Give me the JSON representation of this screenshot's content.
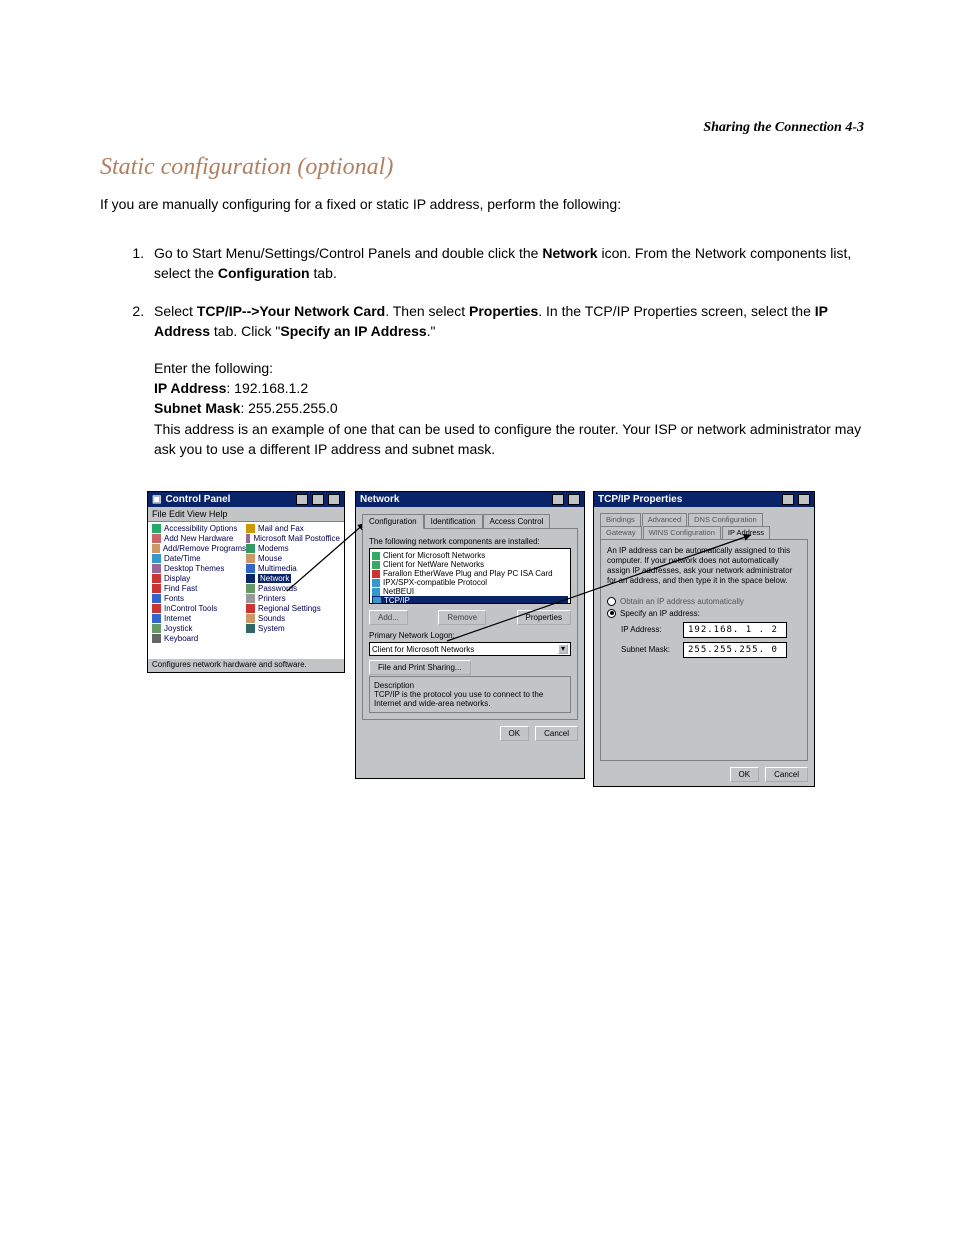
{
  "page_header": "Sharing the Connection   4-3",
  "heading": "Static configuration (optional)",
  "intro": "If you are manually configuring for a fixed or static IP address, perform the following:",
  "steps": {
    "s1_pre": "Go to Start Menu/Settings/Control Panels and double click the ",
    "s1_b1": "Network",
    "s1_mid": " icon. From the Network components list, select the ",
    "s1_b2": "Configuration",
    "s1_post": " tab.",
    "s2_pre": "Select ",
    "s2_b1": "TCP/IP-->Your Network Card",
    "s2_mid1": ". Then select ",
    "s2_b2": "Properties",
    "s2_mid2": ". In the TCP/IP Properties screen, select the ",
    "s2_b3": "IP Address",
    "s2_mid3": " tab. Click \"",
    "s2_b4": "Specify an IP Address",
    "s2_post": ".\"",
    "enter_label": "Enter the following:",
    "ip_label": "IP Address",
    "ip_value": ": 192.168.1.2",
    "mask_label": "Subnet Mask",
    "mask_value": ": 255.255.255.0",
    "note": "This address is an example of one that can be used to configure the router. Your ISP or network administrator may ask you to use a different IP address and subnet mask."
  },
  "colors": {
    "heading_color": "#b08060",
    "titlebar_bg": "#0a246a",
    "win_bg": "#c2c4c6"
  },
  "control_panel": {
    "title": "Control Panel",
    "menu": "File  Edit  View  Help",
    "col1": [
      {
        "c": "#2a6",
        "t": "Accessibility Options"
      },
      {
        "c": "#c66",
        "t": "Add New Hardware"
      },
      {
        "c": "#c96",
        "t": "Add/Remove Programs"
      },
      {
        "c": "#39c",
        "t": "Date/Time"
      },
      {
        "c": "#969",
        "t": "Desktop Themes"
      },
      {
        "c": "#c33",
        "t": "Display"
      },
      {
        "c": "#c33",
        "t": "Find Fast"
      },
      {
        "c": "#36c",
        "t": "Fonts"
      },
      {
        "c": "#c33",
        "t": "InControl Tools"
      },
      {
        "c": "#36c",
        "t": "Internet"
      },
      {
        "c": "#696",
        "t": "Joystick"
      },
      {
        "c": "#666",
        "t": "Keyboard"
      }
    ],
    "col2": [
      {
        "c": "#c90",
        "t": "Mail and Fax"
      },
      {
        "c": "#969",
        "t": "Microsoft Mail Postoffice"
      },
      {
        "c": "#396",
        "t": "Modems"
      },
      {
        "c": "#c96",
        "t": "Mouse"
      },
      {
        "c": "#36c",
        "t": "Multimedia"
      },
      {
        "c": "#0a246a",
        "t": "Network",
        "sel": true
      },
      {
        "c": "#696",
        "t": "Passwords"
      },
      {
        "c": "#999",
        "t": "Printers"
      },
      {
        "c": "#c33",
        "t": "Regional Settings"
      },
      {
        "c": "#c96",
        "t": "Sounds"
      },
      {
        "c": "#366",
        "t": "System"
      }
    ],
    "status": "Configures network hardware and software."
  },
  "network": {
    "title": "Network",
    "tabs": [
      "Configuration",
      "Identification",
      "Access Control"
    ],
    "label_components": "The following network components are installed:",
    "components": [
      {
        "c": "#3a6",
        "t": "Client for Microsoft Networks"
      },
      {
        "c": "#3a6",
        "t": "Client for NetWare Networks"
      },
      {
        "c": "#c33",
        "t": "Farallon EtherWave Plug and Play PC ISA Card"
      },
      {
        "c": "#39c",
        "t": "IPX/SPX-compatible Protocol"
      },
      {
        "c": "#39c",
        "t": "NetBEUI"
      },
      {
        "c": "#39c",
        "t": "TCP/IP",
        "hl": true
      }
    ],
    "btn_add": "Add...",
    "btn_remove": "Remove",
    "btn_props": "Properties",
    "label_logon": "Primary Network Logon:",
    "logon_value": "Client for Microsoft Networks",
    "btn_fps": "File and Print Sharing...",
    "desc_label": "Description",
    "desc_text": "TCP/IP is the protocol you use to connect to the Internet and wide-area networks.",
    "ok": "OK",
    "cancel": "Cancel"
  },
  "tcpip": {
    "title": "TCP/IP Properties",
    "tabs_row1": [
      "Bindings",
      "Advanced",
      "DNS Configuration"
    ],
    "tabs_row2": [
      "Gateway",
      "WINS Configuration",
      "IP Address"
    ],
    "note": "An IP address can be automatically assigned to this computer. If your network does not automatically assign IP addresses, ask your network administrator for an address, and then type it in the space below.",
    "radio_auto": "Obtain an IP address automatically",
    "radio_spec": "Specify an IP address:",
    "ip_label": "IP Address:",
    "ip_value": "192.168. 1 . 2",
    "mask_label": "Subnet Mask:",
    "mask_value": "255.255.255. 0",
    "ok": "OK",
    "cancel": "Cancel"
  }
}
